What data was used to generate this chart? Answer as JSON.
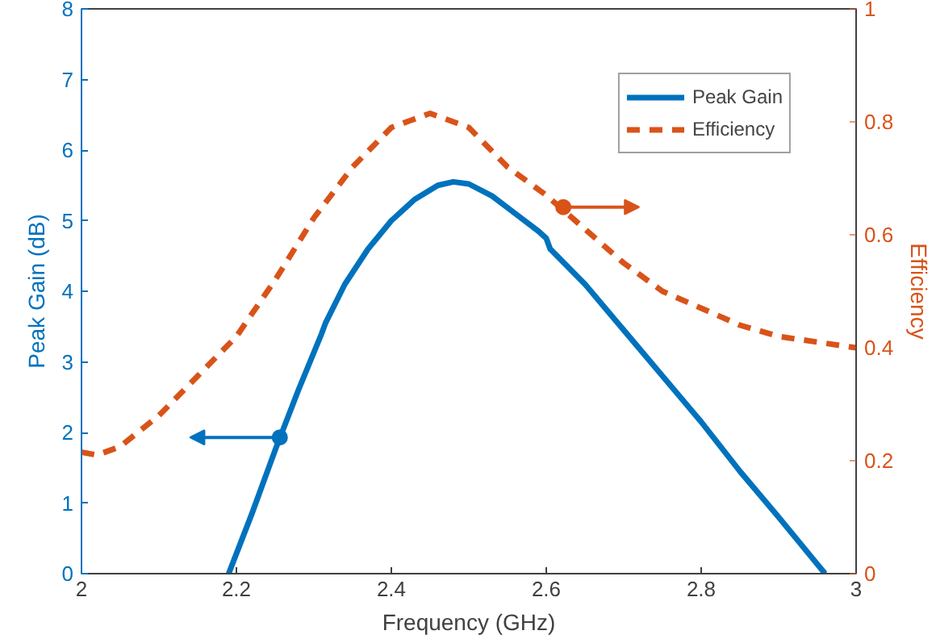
{
  "chart_data": {
    "type": "line",
    "xlabel": "Frequency (GHz)",
    "ylabel": "Peak Gain (dB)",
    "y2label": "Efficiency",
    "xlim": [
      2,
      3
    ],
    "xticks": [
      2,
      2.2,
      2.4,
      2.6,
      2.8,
      3
    ],
    "ylim": [
      0,
      8
    ],
    "yticks": [
      0,
      1,
      2,
      3,
      4,
      5,
      6,
      7,
      8
    ],
    "y2lim": [
      0,
      1
    ],
    "y2ticks": [
      0,
      0.2,
      0.4,
      0.6,
      0.8,
      1
    ],
    "legend": "top right",
    "grid": false,
    "series": [
      {
        "name": "Peak Gain",
        "color": "#0072bd",
        "line_style": "solid",
        "x": [
          2.19,
          2.22,
          2.25,
          2.28,
          2.31,
          2.315,
          2.34,
          2.37,
          2.4,
          2.43,
          2.46,
          2.48,
          2.5,
          2.53,
          2.56,
          2.59,
          2.6,
          2.605,
          2.65,
          2.7,
          2.75,
          2.8,
          2.85,
          2.9,
          2.96
        ],
        "values": [
          0,
          0.85,
          1.75,
          2.6,
          3.4,
          3.55,
          4.1,
          4.6,
          5.0,
          5.3,
          5.5,
          5.55,
          5.52,
          5.35,
          5.1,
          4.85,
          4.75,
          4.6,
          4.1,
          3.45,
          2.8,
          2.15,
          1.45,
          0.8,
          0
        ]
      },
      {
        "name": "Efficiency",
        "color": "#d95319",
        "line_style": "dashed",
        "axis": "y2",
        "x": [
          2,
          2.02,
          2.05,
          2.1,
          2.15,
          2.2,
          2.25,
          2.3,
          2.35,
          2.4,
          2.45,
          2.5,
          2.55,
          2.6,
          2.65,
          2.7,
          2.75,
          2.8,
          2.85,
          2.9,
          2.95,
          3
        ],
        "values": [
          0.215,
          0.21,
          0.225,
          0.28,
          0.35,
          0.42,
          0.52,
          0.63,
          0.72,
          0.79,
          0.815,
          0.79,
          0.72,
          0.67,
          0.61,
          0.55,
          0.5,
          0.47,
          0.44,
          0.42,
          0.41,
          0.4
        ]
      }
    ]
  }
}
